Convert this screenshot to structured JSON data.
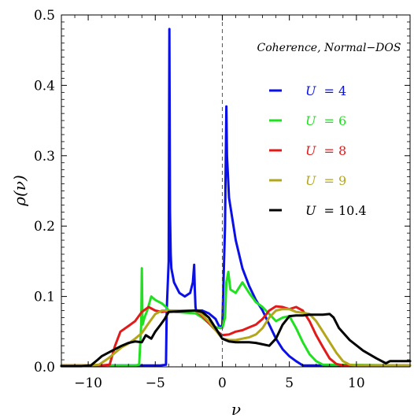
{
  "chart_data": {
    "type": "line",
    "title": "",
    "annotation": "Coherence, Normal−DOS",
    "xlabel": "ν",
    "ylabel": "ρ(ν)",
    "xlim": [
      -12,
      14
    ],
    "ylim": [
      0,
      0.5
    ],
    "xticks": [
      -10,
      -5,
      0,
      5,
      10
    ],
    "xtick_labels": [
      "−10",
      "−5",
      "0",
      "5",
      "10"
    ],
    "yticks": [
      0.0,
      0.1,
      0.2,
      0.3,
      0.4,
      0.5
    ],
    "ytick_labels": [
      "0.0",
      "0.1",
      "0.2",
      "0.3",
      "0.4",
      "0.5"
    ],
    "reference_line": {
      "x": 0,
      "style": "dashed"
    },
    "legend_position": "upper-right",
    "series": [
      {
        "name": "U = 4",
        "legend_var": "U",
        "legend_value": "= 4",
        "color": "#0a10e6",
        "x": [
          -12,
          -4.6,
          -4.2,
          -4.15,
          -4.0,
          -3.95,
          -3.9,
          -3.85,
          -3.8,
          -3.6,
          -3.2,
          -2.8,
          -2.4,
          -2.2,
          -2.1,
          -2.05,
          -2.0,
          -1.95,
          -1.9,
          -1.5,
          -1.0,
          -0.5,
          -0.3,
          -0.15,
          0,
          0.2,
          0.3,
          0.35,
          0.5,
          1.0,
          1.5,
          2.0,
          2.5,
          3.0,
          3.5,
          4.0,
          4.5,
          5.0,
          5.5,
          6.0,
          6.5,
          14
        ],
        "y": [
          0.002,
          0.002,
          0.003,
          0.08,
          0.15,
          0.48,
          0.22,
          0.16,
          0.14,
          0.12,
          0.105,
          0.1,
          0.105,
          0.12,
          0.145,
          0.11,
          0.085,
          0.08,
          0.08,
          0.08,
          0.076,
          0.068,
          0.06,
          0.055,
          0.06,
          0.2,
          0.37,
          0.3,
          0.24,
          0.18,
          0.14,
          0.115,
          0.095,
          0.08,
          0.06,
          0.04,
          0.025,
          0.015,
          0.008,
          0.002,
          0.002,
          0.002
        ]
      },
      {
        "name": "U = 6",
        "legend_var": "U",
        "legend_value": "= 6",
        "color": "#20e020",
        "x": [
          -12,
          -7.5,
          -6.5,
          -6.2,
          -6.05,
          -6.0,
          -5.95,
          -5.8,
          -5.6,
          -5.3,
          -5.0,
          -4.5,
          -4.2,
          -4.0,
          -3.5,
          -2.0,
          -1.5,
          -1.0,
          -0.5,
          0,
          0.2,
          0.3,
          0.45,
          0.6,
          1.0,
          1.5,
          2.0,
          2.5,
          3.0,
          3.5,
          4.0,
          4.5,
          5.0,
          5.5,
          6.0,
          6.5,
          7.0,
          7.5,
          14
        ],
        "y": [
          0.002,
          0.002,
          0.002,
          0.003,
          0.06,
          0.14,
          0.06,
          0.07,
          0.08,
          0.1,
          0.095,
          0.09,
          0.085,
          0.08,
          0.078,
          0.076,
          0.07,
          0.062,
          0.056,
          0.055,
          0.07,
          0.12,
          0.135,
          0.11,
          0.105,
          0.12,
          0.105,
          0.092,
          0.085,
          0.075,
          0.065,
          0.07,
          0.072,
          0.055,
          0.035,
          0.018,
          0.008,
          0.003,
          0.002
        ]
      },
      {
        "name": "U = 8",
        "legend_var": "U",
        "legend_value": "= 8",
        "color": "#e11a1a",
        "x": [
          -12,
          -9,
          -8.4,
          -8.0,
          -7.6,
          -7.0,
          -6.5,
          -6.0,
          -5.5,
          -5.0,
          -4.5,
          -4.0,
          -2.0,
          -1.5,
          -1.0,
          -0.5,
          0,
          0.5,
          1.0,
          1.5,
          2.0,
          2.5,
          3.0,
          3.5,
          4.0,
          4.5,
          5.0,
          5.5,
          6.0,
          6.5,
          7.0,
          7.5,
          8.0,
          8.5,
          9.0,
          14
        ],
        "y": [
          0.002,
          0.002,
          0.003,
          0.03,
          0.05,
          0.058,
          0.065,
          0.078,
          0.085,
          0.08,
          0.078,
          0.08,
          0.08,
          0.072,
          0.062,
          0.052,
          0.045,
          0.046,
          0.05,
          0.052,
          0.056,
          0.06,
          0.068,
          0.08,
          0.086,
          0.085,
          0.082,
          0.085,
          0.08,
          0.065,
          0.045,
          0.028,
          0.012,
          0.004,
          0.002,
          0.002
        ]
      },
      {
        "name": "U = 9",
        "legend_var": "U",
        "legend_value": "= 9",
        "color": "#b3a61a",
        "x": [
          -12,
          -10,
          -9.2,
          -8.5,
          -8.0,
          -7.5,
          -7.0,
          -6.5,
          -6.0,
          -5.5,
          -5.0,
          -4.5,
          -4.0,
          -2.0,
          -1.5,
          -1.0,
          -0.5,
          0,
          0.5,
          1.0,
          1.5,
          2.0,
          2.5,
          3.0,
          3.5,
          4.0,
          4.5,
          5.0,
          5.5,
          6.0,
          6.5,
          7.0,
          7.5,
          8.0,
          8.5,
          9.0,
          9.5,
          10.0,
          14
        ],
        "y": [
          0.002,
          0.002,
          0.003,
          0.012,
          0.02,
          0.028,
          0.033,
          0.04,
          0.048,
          0.062,
          0.075,
          0.08,
          0.08,
          0.08,
          0.074,
          0.064,
          0.052,
          0.04,
          0.038,
          0.038,
          0.04,
          0.042,
          0.046,
          0.055,
          0.07,
          0.08,
          0.082,
          0.082,
          0.078,
          0.077,
          0.075,
          0.065,
          0.05,
          0.035,
          0.02,
          0.008,
          0.003,
          0.002,
          0.002
        ]
      },
      {
        "name": "U = 10.4",
        "legend_var": "U",
        "legend_value": "= 10.4",
        "color": "#000000",
        "x": [
          -12,
          -10.5,
          -9.8,
          -9.3,
          -9.0,
          -8.5,
          -8.0,
          -7.5,
          -7.0,
          -6.5,
          -6.0,
          -5.7,
          -5.3,
          -5.0,
          -4.6,
          -4.3,
          -4.0,
          -2.0,
          -1.5,
          -1.0,
          -0.5,
          0,
          0.5,
          1.0,
          1.5,
          2.0,
          2.5,
          3.0,
          3.5,
          4.0,
          4.5,
          5.0,
          5.5,
          6.0,
          6.5,
          7.0,
          7.5,
          8.0,
          8.3,
          8.7,
          9.5,
          10.5,
          11.5,
          12.2,
          12.5,
          14
        ],
        "y": [
          0.001,
          0.001,
          0.002,
          0.01,
          0.015,
          0.02,
          0.025,
          0.03,
          0.034,
          0.036,
          0.035,
          0.045,
          0.04,
          0.05,
          0.06,
          0.068,
          0.078,
          0.08,
          0.078,
          0.07,
          0.055,
          0.04,
          0.036,
          0.035,
          0.035,
          0.035,
          0.034,
          0.032,
          0.03,
          0.04,
          0.06,
          0.072,
          0.073,
          0.073,
          0.074,
          0.074,
          0.074,
          0.075,
          0.07,
          0.055,
          0.038,
          0.023,
          0.012,
          0.005,
          0.008,
          0.008
        ]
      }
    ]
  }
}
